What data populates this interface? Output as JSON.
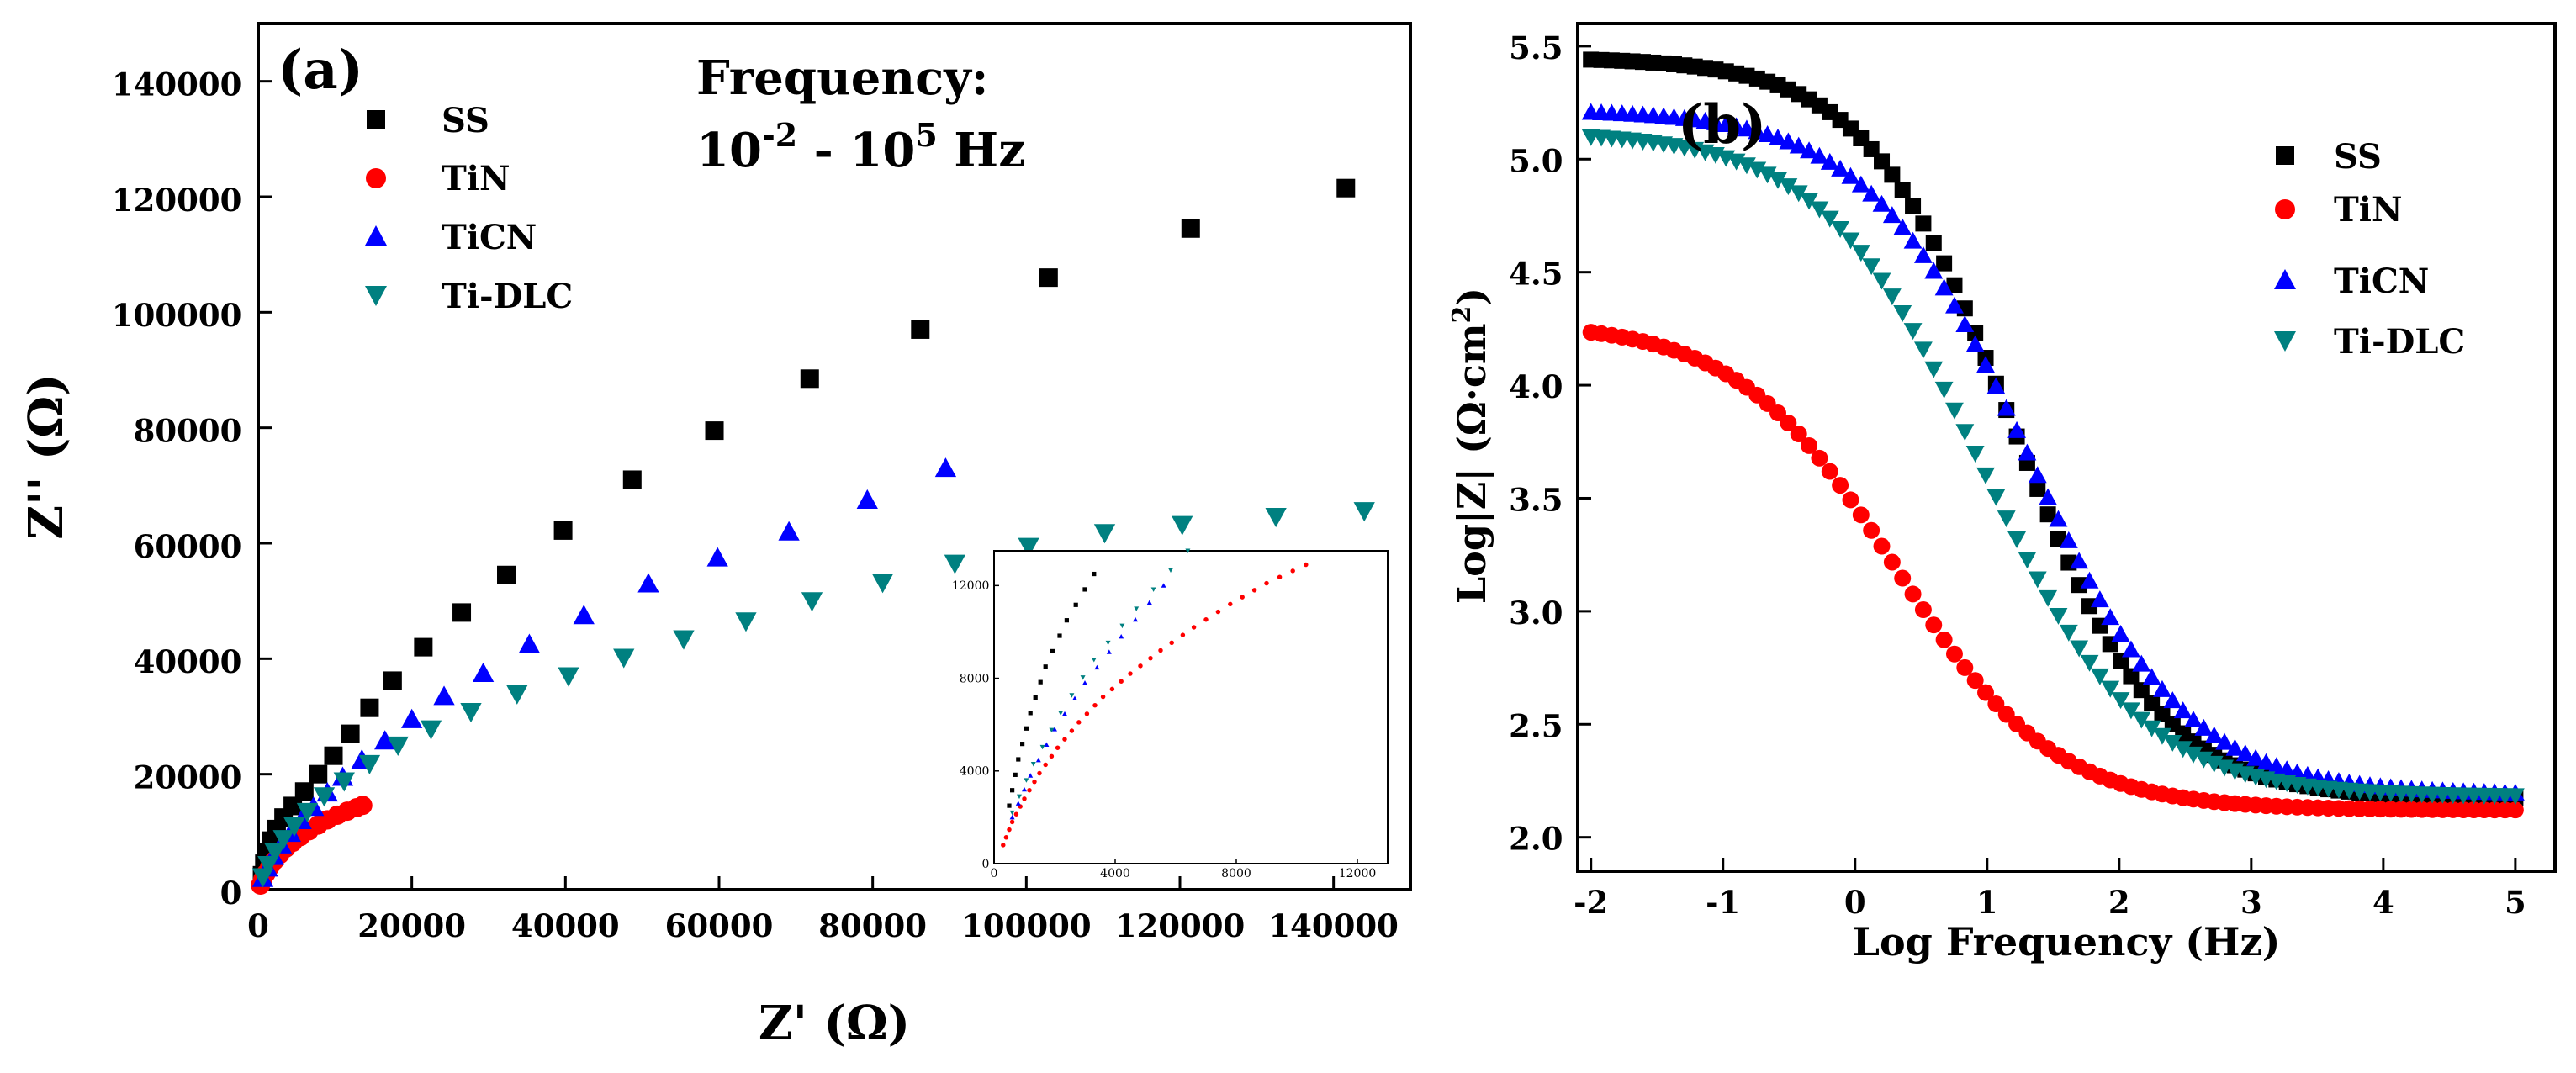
{
  "chart_data": [
    {
      "panel": "(a)",
      "type": "scatter",
      "title": "",
      "xlabel": "Z' (Ω)",
      "ylabel": "Z'' (Ω)",
      "xlim": [
        0,
        150000
      ],
      "ylim": [
        0,
        150000
      ],
      "xticks": [
        0,
        20000,
        40000,
        60000,
        80000,
        100000,
        120000,
        140000
      ],
      "yticks": [
        0,
        20000,
        40000,
        60000,
        80000,
        100000,
        120000,
        140000
      ],
      "xtick_labels": [
        "0",
        "20000",
        "40000",
        "60000",
        "80000",
        "100000",
        "120000",
        "140000"
      ],
      "ytick_labels": [
        "0",
        "20000",
        "40000",
        "60000",
        "80000",
        "100000",
        "120000",
        "140000"
      ],
      "annotation": {
        "line1": "Frequency:",
        "line2_base1": "10",
        "line2_exp1": "-2",
        "line2_mid": " - 10",
        "line2_exp2": "5",
        "line2_end": " Hz"
      },
      "legend_position": "top-left",
      "series": [
        {
          "name": "SS",
          "marker": "square",
          "color": "#000000",
          "x": [
            500,
            800,
            1200,
            1700,
            2400,
            3300,
            4500,
            6000,
            7800,
            9800,
            12000,
            14500,
            17500,
            21500,
            26500,
            32300,
            39700,
            48700,
            59400,
            71800,
            86200,
            102900,
            121400,
            141600
          ],
          "y": [
            2500,
            4500,
            6500,
            8500,
            10500,
            12500,
            14500,
            17000,
            20000,
            23200,
            27000,
            31500,
            36200,
            42000,
            48000,
            54500,
            62200,
            71000,
            79500,
            88500,
            97000,
            106000,
            114500,
            121500
          ]
        },
        {
          "name": "TiN",
          "marker": "circle",
          "color": "#ff0000",
          "x": [
            300,
            600,
            1000,
            1500,
            2100,
            2800,
            3600,
            4500,
            5500,
            6600,
            7800,
            9000,
            10300,
            11600,
            12800,
            13600
          ],
          "y": [
            800,
            1800,
            2800,
            3900,
            5000,
            6100,
            7200,
            8200,
            9200,
            10200,
            11200,
            12100,
            12900,
            13600,
            14200,
            14600
          ]
        },
        {
          "name": "TiCN",
          "marker": "triangle-up",
          "color": "#0000ff",
          "x": [
            600,
            1200,
            2000,
            3000,
            4200,
            5600,
            7200,
            9000,
            11000,
            13500,
            16500,
            20000,
            24200,
            29300,
            35300,
            42400,
            50800,
            59800,
            69100,
            79300,
            89500
          ],
          "y": [
            2000,
            3800,
            5800,
            7800,
            9800,
            12000,
            14300,
            16800,
            19500,
            22500,
            25800,
            29500,
            33500,
            37500,
            42500,
            47500,
            53000,
            57500,
            62000,
            67500,
            73000
          ]
        },
        {
          "name": "Ti-DLC",
          "marker": "triangle-down",
          "color": "#008080",
          "x": [
            600,
            1300,
            2200,
            3300,
            4700,
            6400,
            8600,
            11200,
            14500,
            18200,
            22500,
            27700,
            33700,
            40400,
            47600,
            55400,
            63500,
            72100,
            81300,
            90700,
            100300,
            110200,
            120300,
            132500,
            144000
          ],
          "y": [
            2200,
            4300,
            6500,
            8800,
            11000,
            13500,
            16200,
            18800,
            21800,
            25000,
            27800,
            30800,
            33900,
            37000,
            40200,
            43400,
            46500,
            50000,
            53200,
            56500,
            59400,
            61800,
            63200,
            64600,
            65600
          ]
        }
      ]
    },
    {
      "panel": "inset",
      "type": "scatter",
      "xlim": [
        0,
        13000
      ],
      "ylim": [
        0,
        13500
      ],
      "xticks": [
        0,
        4000,
        8000,
        12000
      ],
      "yticks": [
        0,
        4000,
        8000,
        12000
      ],
      "xtick_labels": [
        "0",
        "4000",
        "8000",
        "12000"
      ],
      "ytick_labels": [
        "0",
        "4000",
        "8000",
        "12000"
      ]
    },
    {
      "panel": "(b)",
      "type": "scatter",
      "title": "",
      "xlabel": "Log Frequency (Hz)",
      "ylabel_prefix": "Log|Z| (Ω·cm",
      "ylabel_sup": "2",
      "ylabel_suffix": ")",
      "xlim": [
        -2.1,
        5.3
      ],
      "ylim": [
        1.85,
        5.6
      ],
      "xticks": [
        -2,
        -1,
        0,
        1,
        2,
        3,
        4,
        5
      ],
      "yticks": [
        2.0,
        2.5,
        3.0,
        3.5,
        4.0,
        4.5,
        5.0,
        5.5
      ],
      "xtick_labels": [
        "-2",
        "-1",
        "0",
        "1",
        "2",
        "3",
        "4",
        "5"
      ],
      "ytick_labels": [
        "2.0",
        "2.5",
        "3.0",
        "3.5",
        "4.0",
        "4.5",
        "5.0",
        "5.5"
      ],
      "legend_position": "top-right",
      "series": [
        {
          "name": "SS",
          "marker": "square",
          "color": "#000000",
          "f_low": 5.45,
          "f_high": 2.17,
          "center": 1.2,
          "width": 0.55,
          "n": 90
        },
        {
          "name": "TiN",
          "marker": "circle",
          "color": "#ff0000",
          "f_low": 4.28,
          "f_high": 2.12,
          "center": 0.3,
          "width": 0.6,
          "n": 90
        },
        {
          "name": "TiCN",
          "marker": "triangle-up",
          "color": "#0000ff",
          "f_low": 5.22,
          "f_high": 2.19,
          "center": 1.3,
          "width": 0.6,
          "n": 90
        },
        {
          "name": "Ti-DLC",
          "marker": "triangle-down",
          "color": "#008080",
          "f_low": 5.12,
          "f_high": 2.18,
          "center": 0.95,
          "width": 0.6,
          "n": 90
        }
      ]
    }
  ]
}
